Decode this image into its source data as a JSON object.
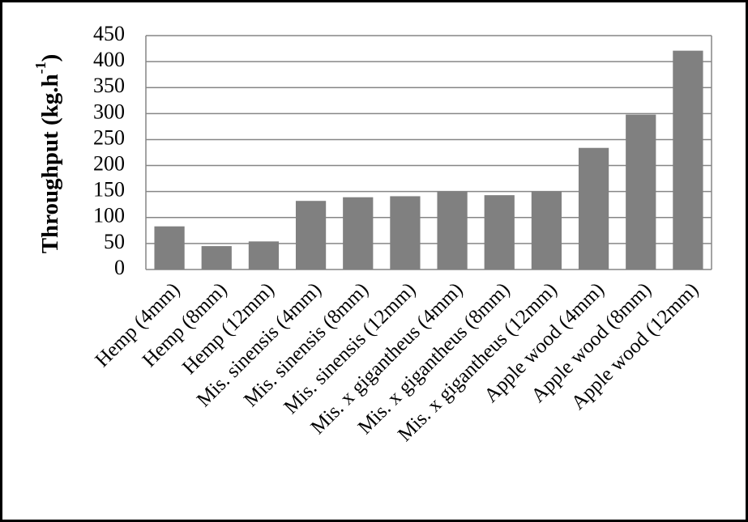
{
  "chart_data": {
    "type": "bar",
    "y_label": [
      "Throughput  (kg.h",
      "-1",
      ")"
    ],
    "categories": [
      "Hemp (4mm)",
      "Hemp (8mm)",
      "Hemp (12mm)",
      "Mis. sinensis (4mm)",
      "Mis. sinensis (8mm)",
      "Mis. sinensis (12mm)",
      "Mis. x gigantheus (4mm)",
      "Mis. x gigantheus (8mm)",
      "Mis. x gigantheus (12mm)",
      "Apple wood (4mm)",
      "Apple wood (8mm)",
      "Apple wood (12mm)"
    ],
    "values": [
      83,
      45,
      54,
      132,
      139,
      141,
      150,
      143,
      150,
      234,
      298,
      421
    ],
    "color": "#808080",
    "ylim": [
      0,
      450
    ],
    "yticks": [
      0,
      50,
      100,
      150,
      200,
      250,
      300,
      350,
      400,
      450
    ],
    "grid": true
  }
}
